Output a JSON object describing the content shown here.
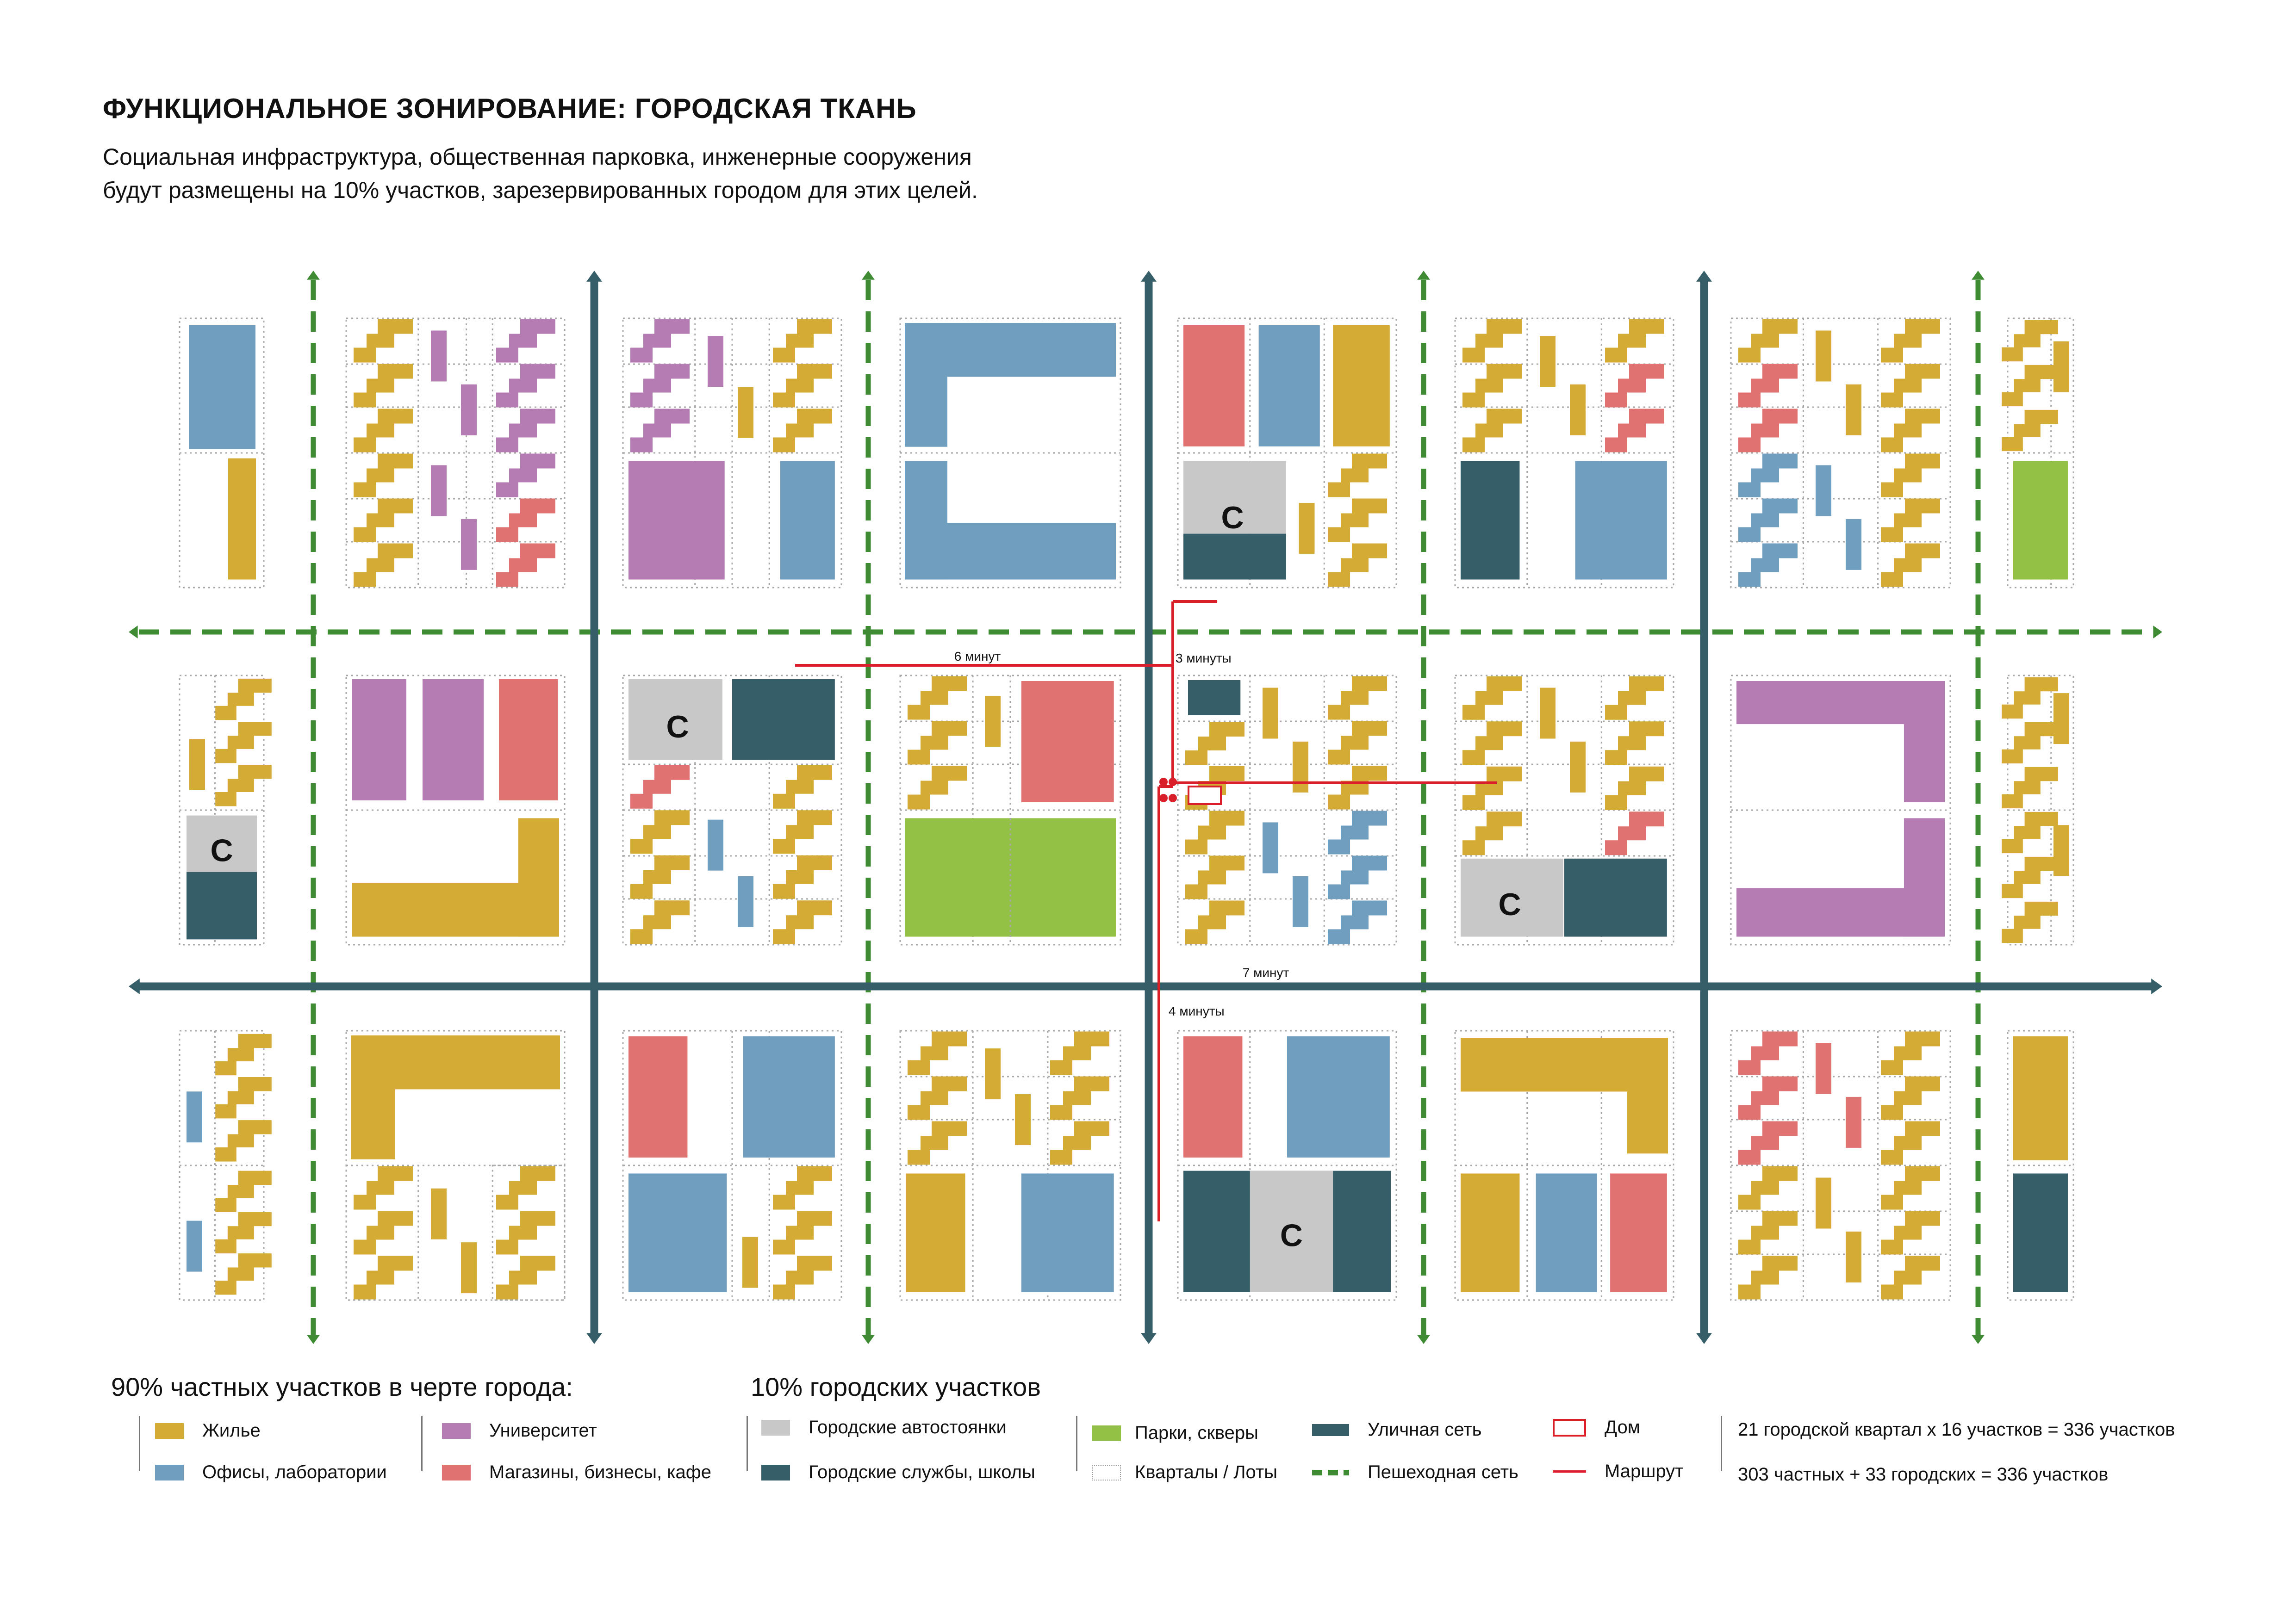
{
  "title": "ФУНКЦИОНАЛЬНОЕ ЗОНИРОВАНИЕ: ГОРОДСКАЯ ТКАНЬ",
  "subtitle_line1": "Социальная инфраструктура, общественная парковка, инженерные сооружения",
  "subtitle_line2": "будут размещены на 10% участков, зарезервированных городом для этих целей.",
  "colors": {
    "housing": "#d4ab35",
    "office": "#6f9ebf",
    "university": "#b57cb3",
    "retail": "#e07271",
    "parking": "#c8c8c8",
    "services": "#355e68",
    "park": "#93c145",
    "street": "#355e68",
    "pedestrian": "#3e8b34",
    "route": "#d81f2a"
  },
  "icons": {
    "home": "home-outline-icon",
    "route": "route-line-icon"
  },
  "map": {
    "parking_label": "С",
    "route_times": {
      "t6": "6 минут",
      "t3": "3 минуты",
      "t7": "7 минут",
      "t4": "4 минуты"
    }
  },
  "legend": {
    "private_heading": "90% частных участков в черте города:",
    "city_heading": "10% городских участков",
    "housing": "Жилье",
    "offices": "Офисы, лаборатории",
    "university": "Университет",
    "retail": "Магазины, бизнесы, кафе",
    "parking": "Городские автостоянки",
    "services": "Городские службы, школы",
    "parks": "Парки, скверы",
    "lots": "Кварталы / Лоты",
    "street_network": "Уличная сеть",
    "pedestrian_network": "Пешеходная сеть",
    "home": "Дом",
    "route": "Маршрут",
    "note1": "21 городской квартал x 16 участков = 336 участков",
    "note2": "303 частных + 33 городских = 336 участков"
  }
}
